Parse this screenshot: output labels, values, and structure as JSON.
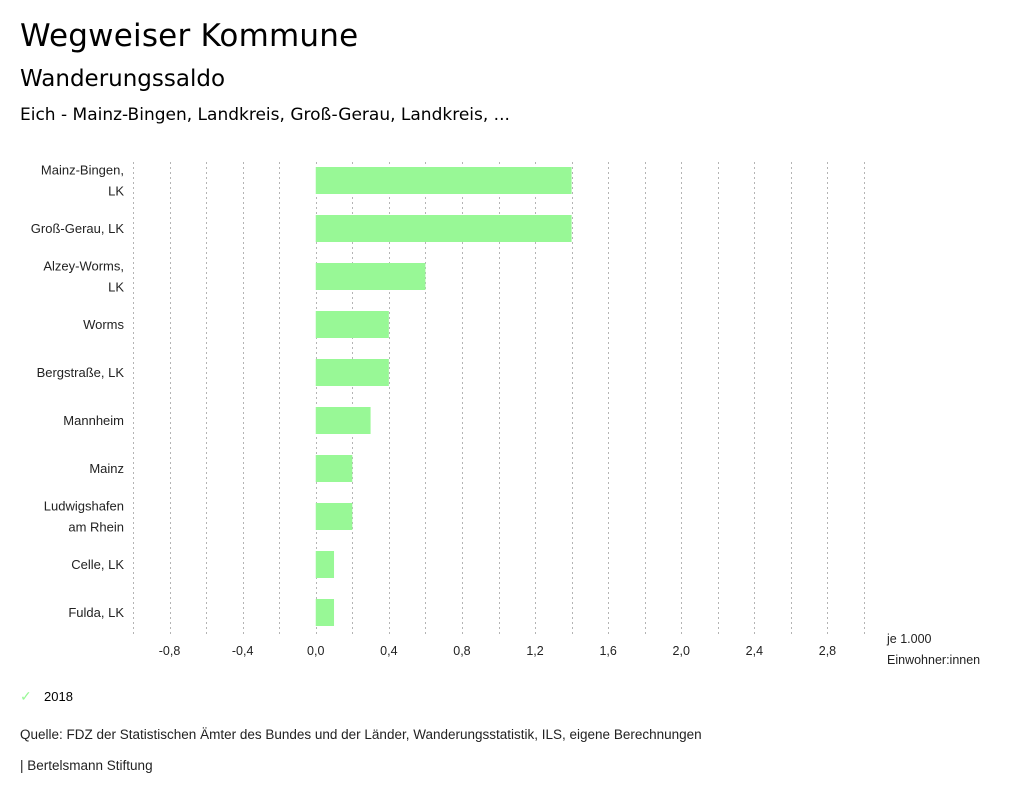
{
  "header": {
    "title": "Wegweiser Kommune",
    "subtitle": "Wanderungssaldo",
    "region": "Eich - Mainz-Bingen, Landkreis, Groß-Gerau, Landkreis, ..."
  },
  "chart_data": {
    "type": "bar",
    "orientation": "horizontal",
    "title": "Wanderungssaldo",
    "xlabel": "je 1.000 Einwohner:innen",
    "xlabel_lines": [
      "je 1.000",
      "Einwohner:innen"
    ],
    "ylabel": "",
    "xlim": [
      -1.0,
      3.0
    ],
    "grid_step": 0.2,
    "grid": true,
    "ticks": [
      -0.8,
      -0.4,
      0.0,
      0.4,
      0.8,
      1.2,
      1.6,
      2.0,
      2.4,
      2.8
    ],
    "tick_labels": [
      "-0,8",
      "-0,4",
      "0,0",
      "0,4",
      "0,8",
      "1,2",
      "1,6",
      "2,0",
      "2,4",
      "2,8"
    ],
    "categories": [
      [
        "Mainz-Bingen,",
        "LK"
      ],
      [
        "Groß-Gerau, LK"
      ],
      [
        "Alzey-Worms,",
        "LK"
      ],
      [
        "Worms"
      ],
      [
        "Bergstraße, LK"
      ],
      [
        "Mannheim"
      ],
      [
        "Mainz"
      ],
      [
        "Ludwigshafen",
        "am Rhein"
      ],
      [
        "Celle, LK"
      ],
      [
        "Fulda, LK"
      ]
    ],
    "series": [
      {
        "name": "2018",
        "color": "#98f896",
        "values": [
          1.4,
          1.4,
          0.6,
          0.4,
          0.4,
          0.3,
          0.2,
          0.2,
          0.1,
          0.1
        ]
      }
    ],
    "legend_position": "bottom-left"
  },
  "legend": {
    "items": [
      {
        "label": "2018",
        "icon": "check-icon",
        "color": "#98f896"
      }
    ]
  },
  "footer": {
    "source": "Quelle: FDZ der Statistischen Ämter des Bundes und der Länder, Wanderungsstatistik, ILS, eigene Berechnungen",
    "credit": "| Bertelsmann Stiftung"
  }
}
